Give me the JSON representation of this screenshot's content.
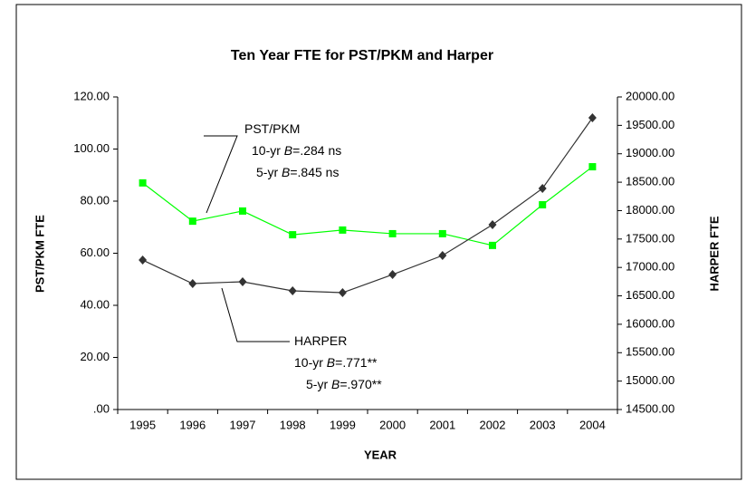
{
  "chart_data": {
    "type": "line",
    "title": "Ten Year FTE for PST/PKM and Harper",
    "x_label": "YEAR",
    "y_label": "PST/PKM FTE",
    "y2_label": "HARPER FTE",
    "categories": [
      "1995",
      "1996",
      "1997",
      "1998",
      "1999",
      "2000",
      "2001",
      "2002",
      "2003",
      "2004"
    ],
    "series": [
      {
        "name": "PST/PKM",
        "color": "#00ff00",
        "marker": "square",
        "axis": "y",
        "values": [
          87.0,
          72.3,
          76.2,
          67.1,
          68.9,
          67.5,
          67.5,
          63.0,
          78.6,
          93.2
        ]
      },
      {
        "name": "HARPER",
        "color": "#333333",
        "marker": "diamond",
        "axis": "y2",
        "values": [
          17130,
          16716,
          16748,
          16588,
          16556,
          16875,
          17210,
          17752,
          18390,
          19633
        ]
      }
    ],
    "ylim": [
      0,
      120
    ],
    "yticks": [
      {
        "value": 0,
        "label": ".00"
      },
      {
        "value": 20,
        "label": "20.00"
      },
      {
        "value": 40,
        "label": "40.00"
      },
      {
        "value": 60,
        "label": "60.00"
      },
      {
        "value": 80,
        "label": "80.00"
      },
      {
        "value": 100,
        "label": "100.00"
      },
      {
        "value": 120,
        "label": "120.00"
      }
    ],
    "y2lim": [
      14500,
      20000
    ],
    "y2ticks": [
      {
        "value": 14500,
        "label": "14500.00"
      },
      {
        "value": 15000,
        "label": "15000.00"
      },
      {
        "value": 15500,
        "label": "15500.00"
      },
      {
        "value": 16000,
        "label": "16000.00"
      },
      {
        "value": 16500,
        "label": "16500.00"
      },
      {
        "value": 17000,
        "label": "17000.00"
      },
      {
        "value": 17500,
        "label": "17500.00"
      },
      {
        "value": 18000,
        "label": "18000.00"
      },
      {
        "value": 18500,
        "label": "18500.00"
      },
      {
        "value": 19000,
        "label": "19000.00"
      },
      {
        "value": 19500,
        "label": "19500.00"
      },
      {
        "value": 20000,
        "label": "20000.00"
      }
    ],
    "annotations": [
      {
        "lines": [
          [
            "PST/PKM"
          ],
          [
            "10-yr ",
            "B",
            "=.284 ns"
          ],
          [
            "5-yr ",
            "B",
            "=.845 ns"
          ]
        ]
      },
      {
        "lines": [
          [
            "HARPER"
          ],
          [
            "10-yr ",
            "B",
            "=.771**"
          ],
          [
            "5-yr ",
            "B",
            "=.970**"
          ]
        ]
      }
    ]
  }
}
